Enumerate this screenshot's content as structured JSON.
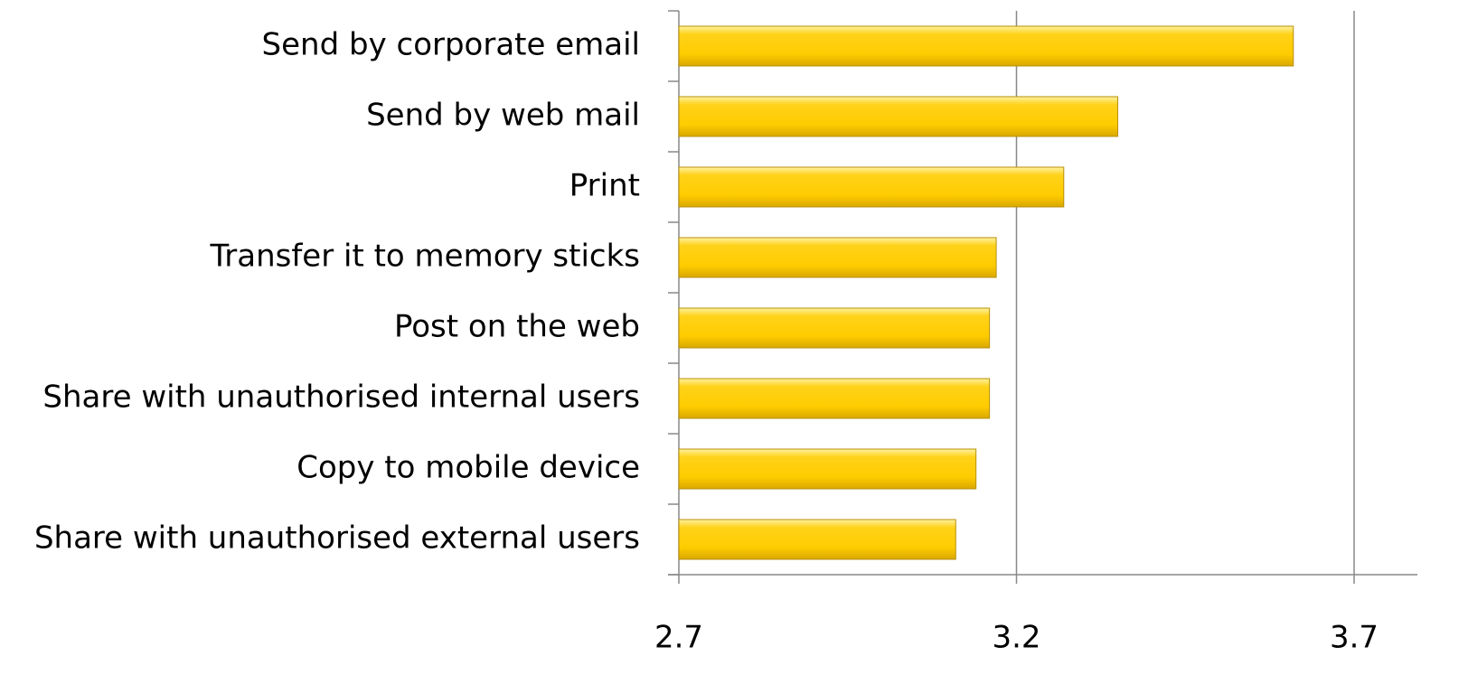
{
  "chart_data": {
    "type": "barh",
    "categories": [
      "Send by corporate email",
      "Send by web mail",
      "Print",
      "Transfer it to memory sticks",
      "Post on the web",
      "Share with unauthorised internal users",
      "Copy to mobile device",
      "Share with unauthorised external users"
    ],
    "values": [
      3.61,
      3.35,
      3.27,
      3.17,
      3.16,
      3.16,
      3.14,
      3.11
    ],
    "color": "#ffcc00",
    "xlim": [
      2.7,
      3.8
    ],
    "xticks": [
      2.7,
      3.2,
      3.7
    ],
    "grid": true
  }
}
